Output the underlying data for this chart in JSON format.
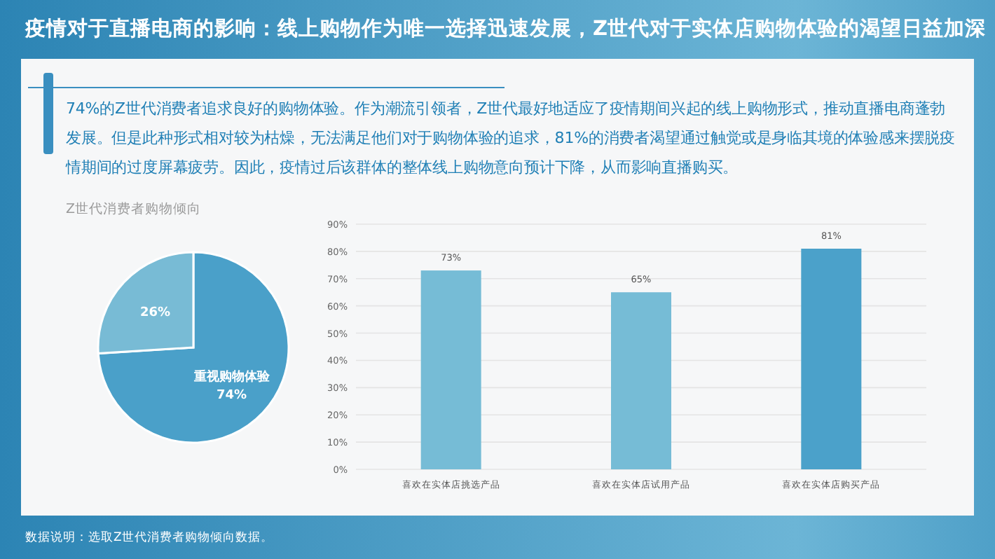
{
  "chart_data": [
    {
      "type": "other",
      "title": "疫情对于直播电商的影响：线上购物作为唯一选择迅速发展，Z世代对于实体店购物体验的渴望日益加深",
      "annotations": [
        "74%的Z世代消费者追求良好的购物体验。作为潮流引领者，Z世代最好地适应了疫情期间兴起的线上购物形式，推动直播电商蓬勃发展。但是此种形式相对较为枯燥，无法满足他们对于购物体验的追求，81%的消费者渴望通过触觉或是身临其境的体验感来摆脱疫情期间的过度屏幕疲劳。因此，疫情过后该群体的整体线上购物意向预计下降，从而影响直播购买。",
        "数据说明：选取Z世代消费者购物倾向数据。"
      ]
    },
    {
      "type": "pie",
      "title": "Z世代消费者购物倾向",
      "categories": [
        "重视购物体验",
        null
      ],
      "values": [
        74,
        26
      ],
      "value_labels": [
        "74%",
        "26%"
      ],
      "colors": [
        "#4aa0c9",
        "#78bbd5"
      ]
    },
    {
      "type": "bar",
      "categories": [
        "喜欢在实体店挑选产品",
        "喜欢在实体店试用产品",
        "喜欢在实体店购买产品"
      ],
      "values": [
        73,
        65,
        81
      ],
      "value_labels": [
        "73%",
        "65%",
        "81%"
      ],
      "colors": [
        "#76bcd6",
        "#76bcd6",
        "#4ba1ca"
      ],
      "ylim": [
        0,
        90
      ],
      "grid": "y",
      "yticks": [
        {
          "value": 0,
          "label": "0%"
        },
        {
          "value": 10,
          "label": "10%"
        },
        {
          "value": 20,
          "label": "20%"
        },
        {
          "value": 30,
          "label": "30%"
        },
        {
          "value": 40,
          "label": "40%"
        },
        {
          "value": 50,
          "label": "50%"
        },
        {
          "value": 60,
          "label": "60%"
        },
        {
          "value": 70,
          "label": "70%"
        },
        {
          "value": 80,
          "label": "80%"
        },
        {
          "value": 90,
          "label": "90%"
        }
      ]
    }
  ]
}
